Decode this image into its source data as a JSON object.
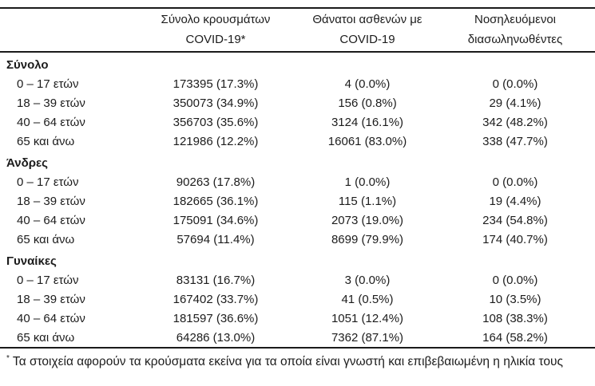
{
  "table": {
    "col_headers": {
      "cases": "Σύνολο κρουσμάτων\nCOVID-19*",
      "deaths": "Θάνατοι ασθενών με\nCOVID-19",
      "intubated": "Νοσηλευόμενοι\nδιασωληνωθέντες"
    },
    "sections": [
      {
        "title": "Σύνολο",
        "rows": [
          {
            "label": "0 – 17 ετών",
            "cases": "173395 (17.3%)",
            "deaths": "4 (0.0%)",
            "intubated": "0 (0.0%)"
          },
          {
            "label": "18 – 39 ετών",
            "cases": "350073 (34.9%)",
            "deaths": "156 (0.8%)",
            "intubated": "29 (4.1%)"
          },
          {
            "label": "40 – 64 ετών",
            "cases": "356703 (35.6%)",
            "deaths": "3124 (16.1%)",
            "intubated": "342 (48.2%)"
          },
          {
            "label": "65 και άνω",
            "cases": "121986 (12.2%)",
            "deaths": "16061 (83.0%)",
            "intubated": "338 (47.7%)"
          }
        ]
      },
      {
        "title": "Άνδρες",
        "rows": [
          {
            "label": "0 – 17 ετών",
            "cases": "90263 (17.8%)",
            "deaths": "1 (0.0%)",
            "intubated": "0 (0.0%)"
          },
          {
            "label": "18 – 39 ετών",
            "cases": "182665 (36.1%)",
            "deaths": "115 (1.1%)",
            "intubated": "19 (4.4%)"
          },
          {
            "label": "40 – 64 ετών",
            "cases": "175091 (34.6%)",
            "deaths": "2073 (19.0%)",
            "intubated": "234 (54.8%)"
          },
          {
            "label": "65 και άνω",
            "cases": "57694 (11.4%)",
            "deaths": "8699 (79.9%)",
            "intubated": "174 (40.7%)"
          }
        ]
      },
      {
        "title": "Γυναίκες",
        "rows": [
          {
            "label": "0 – 17 ετών",
            "cases": "83131 (16.7%)",
            "deaths": "3 (0.0%)",
            "intubated": "0 (0.0%)"
          },
          {
            "label": "18 – 39 ετών",
            "cases": "167402 (33.7%)",
            "deaths": "41 (0.5%)",
            "intubated": "10 (3.5%)"
          },
          {
            "label": "40 – 64 ετών",
            "cases": "181597 (36.6%)",
            "deaths": "1051 (12.4%)",
            "intubated": "108 (38.3%)"
          },
          {
            "label": "65 και άνω",
            "cases": "64286 (13.0%)",
            "deaths": "7362 (87.1%)",
            "intubated": "164 (58.2%)"
          }
        ]
      }
    ],
    "footnote": {
      "marker": "*",
      "text": " Τα στοιχεία αφορούν τα κρούσματα εκείνα για τα οποία είναι γνωστή και επιβεβαιωμένη η ηλικία τους"
    }
  },
  "colors": {
    "text": "#1c1c1c",
    "rule": "#1a1a1a",
    "background": "#ffffff"
  }
}
